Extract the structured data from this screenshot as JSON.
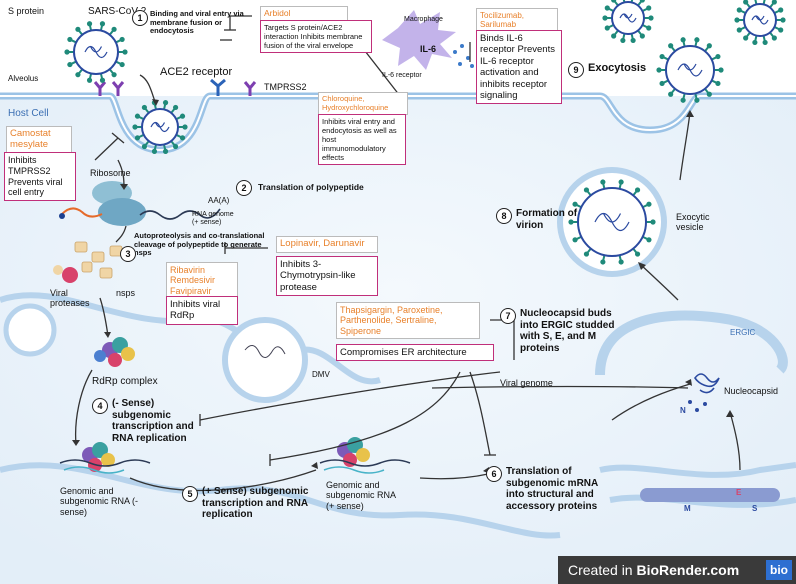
{
  "labels": {
    "s_protein": "S protein",
    "sars": "SARS-CoV-2",
    "alveolus": "Alveolus",
    "ace2": "ACE2 receptor",
    "tmprss2": "TMPRSS2",
    "host_cell": "Host Cell",
    "ribosome": "Ribosome",
    "aaa": "AA(A)",
    "rna_genome": "RNA genome (+ sense)",
    "autoproteolysis": "Autoproteolysis and co-translational cleavage of polypeptide to generate nsps",
    "viral_proteases": "Viral proteases",
    "nsps": "nsps",
    "rdrp_complex": "RdRp complex",
    "dmv": "DMV",
    "genomic_minus": "Genomic and subgenomic RNA (- sense)",
    "genomic_plus": "Genomic and subgenomic RNA (+ sense)",
    "viral_genome": "Viral genome",
    "ergic": "ERGIC",
    "nucleocapsid": "Nucleocapsid",
    "exocytic_vesicle": "Exocytic vesicle",
    "macrophage": "Macrophage",
    "il6": "IL-6",
    "il6_receptor": "IL-6 receptor",
    "m": "M",
    "e": "E",
    "s": "S",
    "n": "N"
  },
  "steps": [
    {
      "num": "1",
      "text": "Binding and viral entry via membrane fusion or endocytosis"
    },
    {
      "num": "2",
      "text": "Translation of polypeptide"
    },
    {
      "num": "3",
      "text": ""
    },
    {
      "num": "4",
      "text": "(- Sense) subgenomic transcription and RNA replication"
    },
    {
      "num": "5",
      "text": "(+ Sense) subgenomic transcription and RNA replication"
    },
    {
      "num": "6",
      "text": "Translation of subgenomic mRNA into structural and accessory proteins"
    },
    {
      "num": "7",
      "text": "Nucleocapsid buds into ERGIC studded with S, E, and M proteins"
    },
    {
      "num": "8",
      "text": "Formation of virion"
    },
    {
      "num": "9",
      "text": "Exocytosis"
    }
  ],
  "drugs": {
    "arbidol": {
      "name": "Arbidol",
      "mechanism": "Targets S protein/ACE2 interaction Inhibits membrane fusion of the viral envelope"
    },
    "chloroquine": {
      "name": "Chloroquine, Hydroxychloroquine",
      "mechanism": "Inhibits viral entry and endocytosis as well as host immunomodulatory effects"
    },
    "camostat": {
      "name": "Camostat mesylate",
      "mechanism": "Inhibits TMPRSS2 Prevents viral cell entry"
    },
    "tocilizumab": {
      "name": "Tocilizumab, Sarilumab",
      "mechanism": "Binds IL-6 receptor Prevents IL-6 receptor activation and inhibits receptor signaling"
    },
    "lopinavir": {
      "name": "Lopinavir, Darunavir",
      "mechanism": "Inhibits 3-Chymotrypsin-like protease"
    },
    "ribavirin": {
      "name": "Ribavirin Remdesivir Favipiravir",
      "mechanism": "Inhibits viral RdRp"
    },
    "thapsigargin": {
      "name": "Thapsigargin, Paroxetine, Parthenolide, Sertraline, Spiperone",
      "mechanism": "Compromises ER architecture"
    }
  },
  "footer": {
    "prefix": "Created in ",
    "brand": "BioRender.com",
    "logo": "bio"
  },
  "colors": {
    "drug_text": "#e8812b",
    "mechanism_border": "#c02f7a",
    "membrane": "#b7d3ec",
    "virus_spike": "#1f8a7a"
  }
}
